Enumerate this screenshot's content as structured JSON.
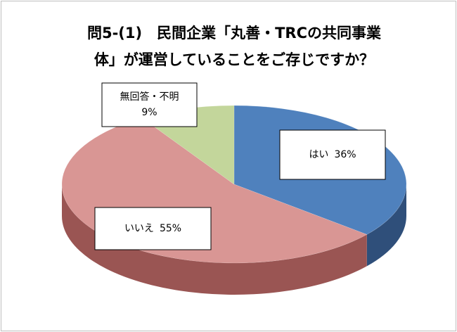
{
  "chart_data": {
    "type": "pie",
    "title": [
      "問5-(1)　民間企業「丸善・TRCの共同事業",
      "体」が運営していることをご存じですか？"
    ],
    "categories": [
      "はい",
      "いいえ",
      "無回答・不明"
    ],
    "values": [
      36,
      55,
      9
    ],
    "value_labels": [
      "36%",
      "55%",
      "9%"
    ],
    "colors": [
      "#4f81bd",
      "#d99694",
      "#c3d69b"
    ],
    "side_colors": [
      "#2f4f7a",
      "#9a5553",
      "#8a9b62"
    ],
    "start_angle": 0,
    "direction": "clockwise",
    "style": "3d"
  }
}
